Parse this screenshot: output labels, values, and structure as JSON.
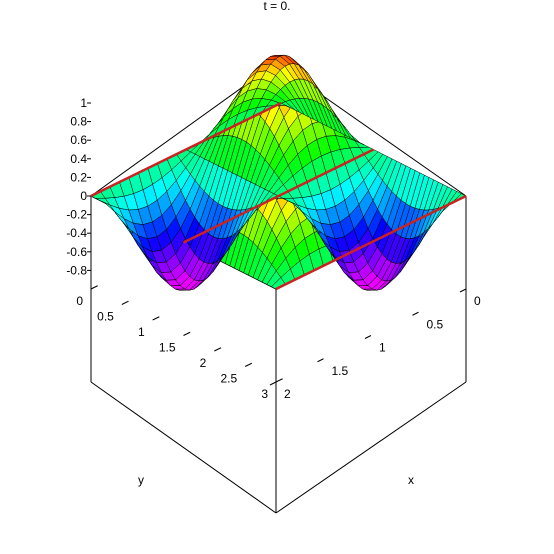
{
  "chart_data": {
    "type": "surface3d",
    "title": "t = 0.",
    "xlabel": "x",
    "ylabel": "y",
    "zlabel": "",
    "xlim": [
      0,
      2
    ],
    "ylim": [
      0,
      3
    ],
    "zlim": [
      -1,
      1
    ],
    "x_ticks": [
      "0",
      "0.5",
      "1",
      "1.5",
      "2"
    ],
    "y_ticks": [
      "0",
      "0.5",
      "1",
      "1.5",
      "2",
      "2.5",
      "3"
    ],
    "z_ticks": [
      "-0.8",
      "-0.6",
      "-0.4",
      "-0.2",
      "0",
      "0.2",
      "0.4",
      "0.6",
      "0.8",
      "1"
    ],
    "function": "z = sin(pi*x)*sin(2*pi*y/3)",
    "grid": {
      "x_lines": 20,
      "y_lines": 40
    },
    "colorscheme": "rainbow (z)",
    "zero_contour_color": "#cc2222",
    "box_color": "#000000"
  }
}
